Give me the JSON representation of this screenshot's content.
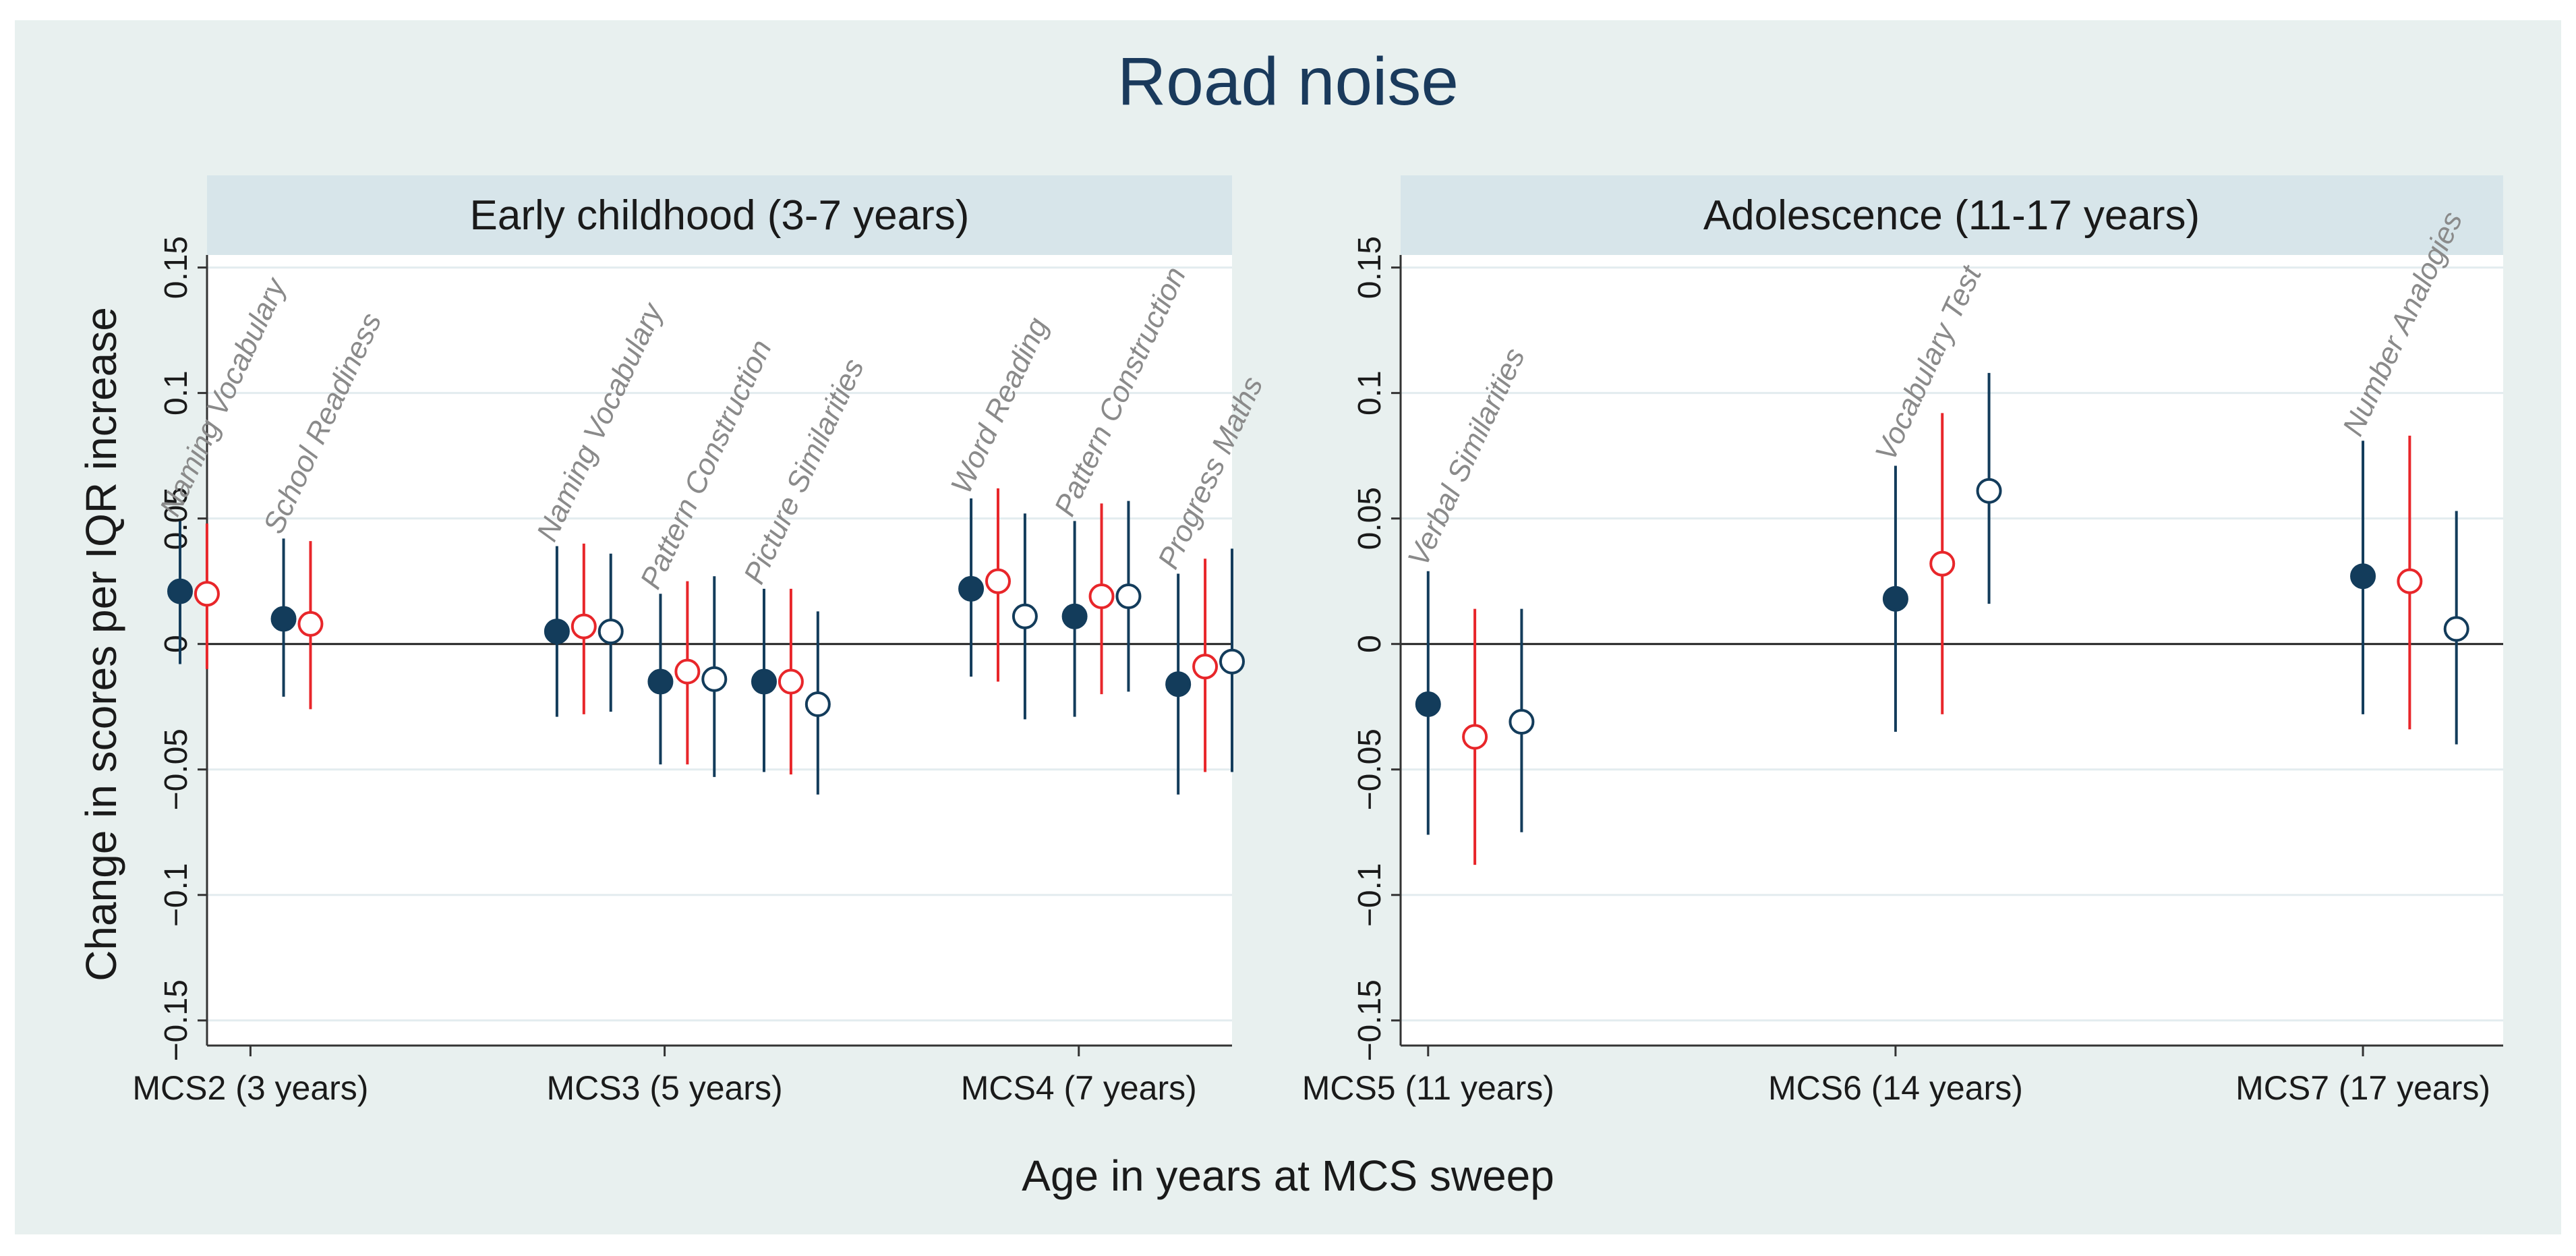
{
  "chart_data": {
    "title": "Road noise",
    "xlabel": "Age in years at MCS sweep",
    "ylabel": "Change in scores per IQR increase",
    "type": "scatter",
    "colors": {
      "background": "#e8f0ef",
      "strip": "#d7e5ea",
      "navy": "#133c5b",
      "red": "#e8262a",
      "plot": "#ffffff",
      "grid": "#e3ecef",
      "test_label": "#8a8a8a",
      "text": "#1a1a1a"
    },
    "panels": [
      {
        "title": "Early childhood (3-7 years)",
        "ylim": [
          -0.16,
          0.155
        ],
        "yticks": [
          -0.15,
          -0.1,
          -0.05,
          0,
          0.05,
          0.1,
          0.15
        ],
        "ytick_labels": [
          "−0.15",
          "−0.1",
          "−0.05",
          "0",
          "0.05",
          "0.1",
          "0.15"
        ],
        "xlim": [
          -0.17,
          2.37
        ],
        "xticks": [
          0,
          1,
          2
        ],
        "xtick_labels": [
          "MCS2 (3 years)",
          "MCS3 (5 years)",
          "MCS4 (7 years)"
        ],
        "groups": [
          {
            "x": -0.17,
            "label": "Naming Vocabulary",
            "points": [
              {
                "style": "filled-navy",
                "dx": 0.0,
                "value": 0.021,
                "lo": -0.008,
                "hi": 0.049
              },
              {
                "style": "open-red",
                "dx": 0.065,
                "value": 0.02,
                "lo": -0.01,
                "hi": 0.048
              }
            ]
          },
          {
            "x": 0.08,
            "label": "School Readiness",
            "points": [
              {
                "style": "filled-navy",
                "dx": 0.0,
                "value": 0.01,
                "lo": -0.021,
                "hi": 0.042
              },
              {
                "style": "open-red",
                "dx": 0.065,
                "value": 0.008,
                "lo": -0.026,
                "hi": 0.041
              }
            ]
          },
          {
            "x": 0.74,
            "label": "Naming Vocabulary",
            "points": [
              {
                "style": "filled-navy",
                "dx": 0.0,
                "value": 0.005,
                "lo": -0.029,
                "hi": 0.039
              },
              {
                "style": "open-red",
                "dx": 0.065,
                "value": 0.007,
                "lo": -0.028,
                "hi": 0.04
              },
              {
                "style": "open-navy",
                "dx": 0.13,
                "value": 0.005,
                "lo": -0.027,
                "hi": 0.036
              }
            ]
          },
          {
            "x": 0.99,
            "label": "Pattern Construction",
            "points": [
              {
                "style": "filled-navy",
                "dx": 0.0,
                "value": -0.015,
                "lo": -0.048,
                "hi": 0.02
              },
              {
                "style": "open-red",
                "dx": 0.065,
                "value": -0.011,
                "lo": -0.048,
                "hi": 0.025
              },
              {
                "style": "open-navy",
                "dx": 0.13,
                "value": -0.014,
                "lo": -0.053,
                "hi": 0.027
              }
            ]
          },
          {
            "x": 1.24,
            "label": "Picture Similarities",
            "points": [
              {
                "style": "filled-navy",
                "dx": 0.0,
                "value": -0.015,
                "lo": -0.051,
                "hi": 0.022
              },
              {
                "style": "open-red",
                "dx": 0.065,
                "value": -0.015,
                "lo": -0.052,
                "hi": 0.022
              },
              {
                "style": "open-navy",
                "dx": 0.13,
                "value": -0.024,
                "lo": -0.06,
                "hi": 0.013
              }
            ]
          },
          {
            "x": 1.74,
            "label": "Word Reading",
            "points": [
              {
                "style": "filled-navy",
                "dx": 0.0,
                "value": 0.022,
                "lo": -0.013,
                "hi": 0.058
              },
              {
                "style": "open-red",
                "dx": 0.065,
                "value": 0.025,
                "lo": -0.015,
                "hi": 0.062
              },
              {
                "style": "open-navy",
                "dx": 0.13,
                "value": 0.011,
                "lo": -0.03,
                "hi": 0.052
              }
            ]
          },
          {
            "x": 1.99,
            "label": "Pattern Construction",
            "points": [
              {
                "style": "filled-navy",
                "dx": 0.0,
                "value": 0.011,
                "lo": -0.029,
                "hi": 0.049
              },
              {
                "style": "open-red",
                "dx": 0.065,
                "value": 0.019,
                "lo": -0.02,
                "hi": 0.056
              },
              {
                "style": "open-navy",
                "dx": 0.13,
                "value": 0.019,
                "lo": -0.019,
                "hi": 0.057
              }
            ]
          },
          {
            "x": 2.24,
            "label": "Progress Maths",
            "points": [
              {
                "style": "filled-navy",
                "dx": 0.0,
                "value": -0.016,
                "lo": -0.06,
                "hi": 0.028
              },
              {
                "style": "open-red",
                "dx": 0.065,
                "value": -0.009,
                "lo": -0.051,
                "hi": 0.034
              },
              {
                "style": "open-navy",
                "dx": 0.13,
                "value": -0.007,
                "lo": -0.051,
                "hi": 0.038
              }
            ]
          }
        ]
      },
      {
        "title": "Adolescence (11-17 years)",
        "ylim": [
          -0.16,
          0.155
        ],
        "yticks": [
          -0.15,
          -0.1,
          -0.05,
          0,
          0.05,
          0.1,
          0.15
        ],
        "ytick_labels": [
          "−0.15",
          "−0.1",
          "−0.05",
          "0",
          "0.05",
          "0.1",
          "0.15"
        ],
        "xlim": [
          -0.03,
          2.3
        ],
        "xticks": [
          0,
          1,
          2
        ],
        "xtick_labels": [
          "MCS5 (11 years)",
          "MCS6 (14 years)",
          "MCS7 (17 years)"
        ],
        "groups": [
          {
            "x": 0.0,
            "label": "Verbal Similarities",
            "points": [
              {
                "style": "filled-navy",
                "dx": 0.0,
                "value": -0.024,
                "lo": -0.076,
                "hi": 0.029
              },
              {
                "style": "open-red",
                "dx": 0.1,
                "value": -0.037,
                "lo": -0.088,
                "hi": 0.014
              },
              {
                "style": "open-navy",
                "dx": 0.2,
                "value": -0.031,
                "lo": -0.075,
                "hi": 0.014
              }
            ]
          },
          {
            "x": 1.0,
            "label": "Vocabulary Test",
            "points": [
              {
                "style": "filled-navy",
                "dx": 0.0,
                "value": 0.018,
                "lo": -0.035,
                "hi": 0.071
              },
              {
                "style": "open-red",
                "dx": 0.1,
                "value": 0.032,
                "lo": -0.028,
                "hi": 0.092
              },
              {
                "style": "open-navy",
                "dx": 0.2,
                "value": 0.061,
                "lo": 0.016,
                "hi": 0.108
              }
            ]
          },
          {
            "x": 2.0,
            "label": "Number Analogies",
            "points": [
              {
                "style": "filled-navy",
                "dx": 0.0,
                "value": 0.027,
                "lo": -0.028,
                "hi": 0.081
              },
              {
                "style": "open-red",
                "dx": 0.1,
                "value": 0.025,
                "lo": -0.034,
                "hi": 0.083
              },
              {
                "style": "open-navy",
                "dx": 0.2,
                "value": 0.006,
                "lo": -0.04,
                "hi": 0.053
              }
            ]
          }
        ]
      }
    ]
  }
}
